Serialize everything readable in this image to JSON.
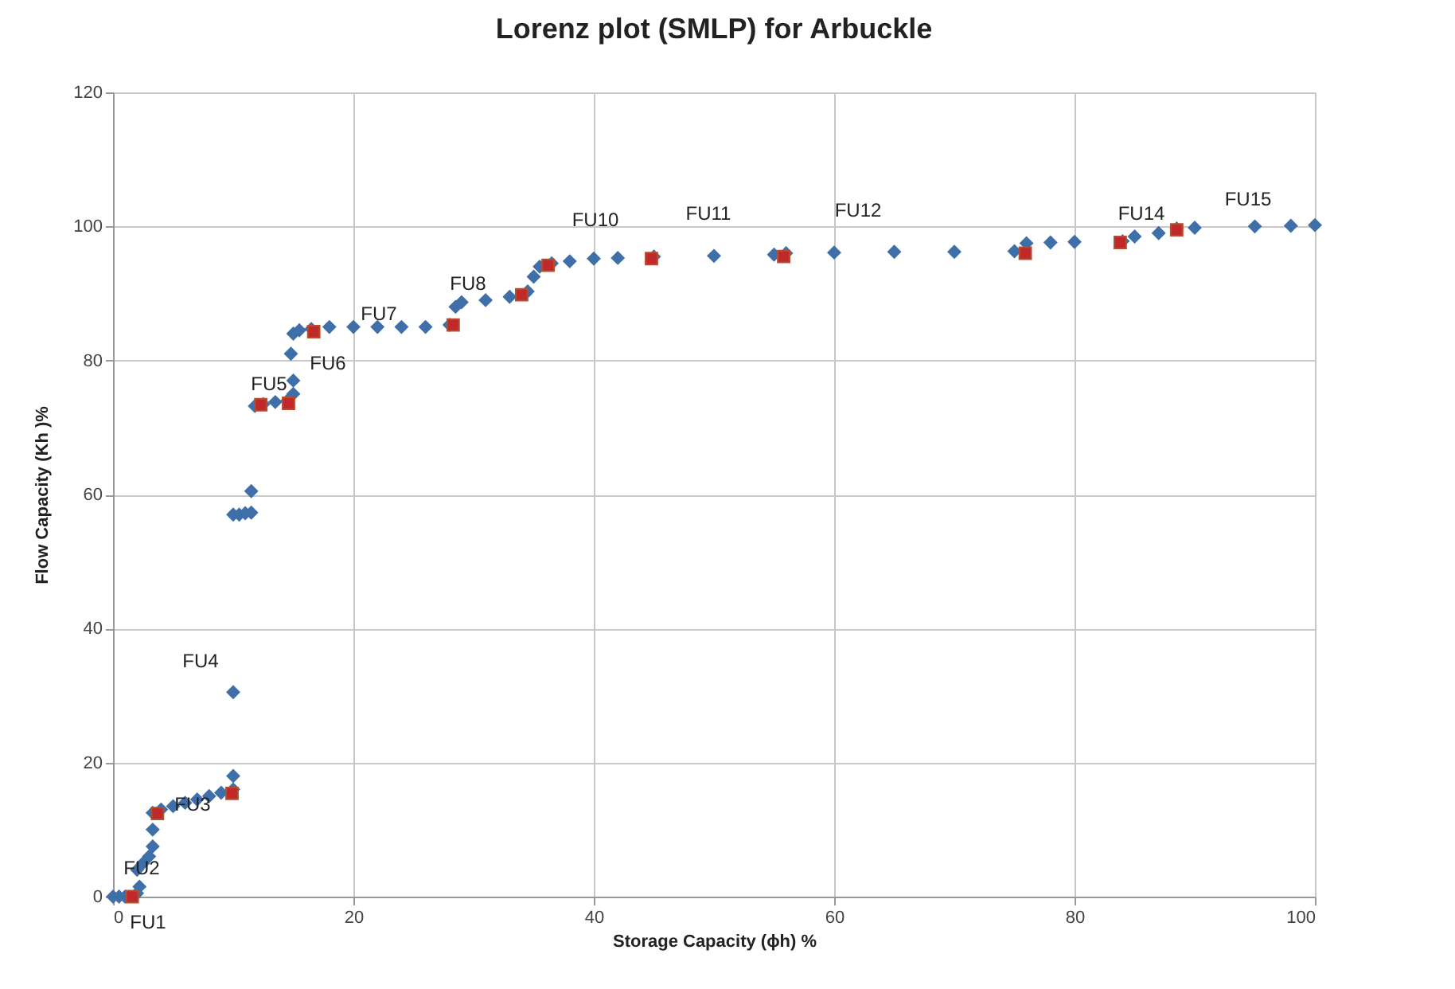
{
  "chart_data": {
    "type": "scatter",
    "title": "Lorenz plot (SMLP) for Arbuckle",
    "xlabel": "Storage Capacity (ϕh) %",
    "ylabel": "Flow Capacity (Kh )%",
    "xlim": [
      0,
      100
    ],
    "ylim": [
      0,
      120
    ],
    "xticks": [
      0,
      20,
      40,
      60,
      80,
      100
    ],
    "yticks": [
      0,
      20,
      40,
      60,
      80,
      100,
      120
    ],
    "grid": true,
    "marker": "diamond",
    "series": [
      {
        "color": "#3f6fa8",
        "x": [
          0,
          0.5,
          1,
          2,
          2.2,
          2,
          2.5,
          3,
          3.3,
          3.3,
          3.3,
          4,
          5,
          6,
          7,
          8,
          9,
          10,
          10,
          10,
          10,
          10.5,
          11,
          11.5,
          11.5,
          11.8,
          12.5,
          13.5,
          14.5,
          15,
          15,
          14.8,
          15,
          15.5,
          16.5,
          18,
          20,
          22,
          24,
          26,
          28,
          28.5,
          29,
          31,
          33,
          34.5,
          35,
          35.5,
          36.5,
          38,
          40,
          42,
          45,
          50,
          55,
          56,
          60,
          65,
          70,
          75,
          76,
          78,
          80,
          84,
          85,
          87,
          88.5,
          90,
          95,
          98,
          100
        ],
        "values": [
          0,
          0,
          0,
          0.5,
          1.5,
          4,
          5,
          6,
          7.5,
          10,
          12.5,
          13,
          13.5,
          14,
          14.5,
          15,
          15.5,
          16,
          18,
          30.5,
          57,
          57,
          57.2,
          57.3,
          60.5,
          73.2,
          73.5,
          73.8,
          74,
          75,
          77,
          81,
          84,
          84.5,
          84.7,
          85,
          85,
          85,
          85,
          85,
          85.3,
          88,
          88.7,
          89,
          89.5,
          90.3,
          92.5,
          94,
          94.5,
          94.8,
          95.2,
          95.3,
          95.5,
          95.6,
          95.8,
          96,
          96.1,
          96.2,
          96.2,
          96.3,
          97.5,
          97.6,
          97.7,
          97.8,
          98.5,
          99,
          99.7,
          99.8,
          100,
          100.1,
          100.2
        ]
      },
      {
        "color": "#c0282a",
        "marker": "square",
        "x": [
          1.6,
          3.7,
          9.9,
          12.3,
          14.6,
          16.7,
          28.3,
          34,
          36.2,
          44.8,
          55.8,
          75.9,
          83.8,
          88.5
        ],
        "values": [
          0,
          12.4,
          15.4,
          73.4,
          73.6,
          84.3,
          85.3,
          89.8,
          94.2,
          95.2,
          95.5,
          96,
          97.6,
          99.5
        ]
      }
    ],
    "annotations": [
      "FU1",
      "FU2",
      "FU3",
      "FU4",
      "FU5",
      "FU6",
      "FU7",
      "FU8",
      "FU10",
      "FU11",
      "FU12",
      "FU14",
      "FU15"
    ]
  }
}
